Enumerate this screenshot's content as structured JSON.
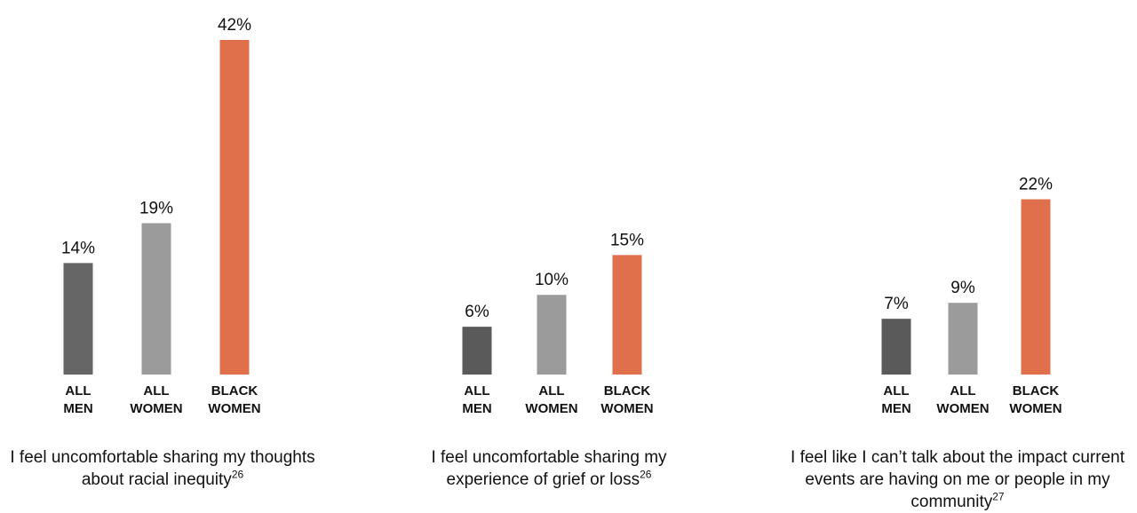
{
  "chart_data": [
    {
      "type": "bar",
      "categories": [
        "ALL MEN",
        "ALL WOMEN",
        "BLACK WOMEN"
      ],
      "category_lines": [
        [
          "ALL",
          "MEN"
        ],
        [
          "ALL",
          "WOMEN"
        ],
        [
          "BLACK",
          "WOMEN"
        ]
      ],
      "values": [
        14,
        19,
        42
      ],
      "value_labels": [
        "14%",
        "19%",
        "42%"
      ],
      "colors": [
        "#666666",
        "#9b9b9b",
        "#e0704c"
      ],
      "caption": "I feel uncomfortable sharing my thoughts about racial inequity",
      "footnote": "26",
      "ylim": [
        0,
        42
      ]
    },
    {
      "type": "bar",
      "categories": [
        "ALL MEN",
        "ALL WOMEN",
        "BLACK WOMEN"
      ],
      "category_lines": [
        [
          "ALL",
          "MEN"
        ],
        [
          "ALL",
          "WOMEN"
        ],
        [
          "BLACK",
          "WOMEN"
        ]
      ],
      "values": [
        6,
        10,
        15
      ],
      "value_labels": [
        "6%",
        "10%",
        "15%"
      ],
      "colors": [
        "#5a5a5a",
        "#9b9b9b",
        "#e0704c"
      ],
      "caption": "I feel uncomfortable sharing my experience of grief or loss",
      "footnote": "26",
      "ylim": [
        0,
        42
      ]
    },
    {
      "type": "bar",
      "categories": [
        "ALL MEN",
        "ALL WOMEN",
        "BLACK WOMEN"
      ],
      "category_lines": [
        [
          "ALL",
          "MEN"
        ],
        [
          "ALL",
          "WOMEN"
        ],
        [
          "BLACK",
          "WOMEN"
        ]
      ],
      "values": [
        7,
        9,
        22
      ],
      "value_labels": [
        "7%",
        "9%",
        "22%"
      ],
      "colors": [
        "#5a5a5a",
        "#9b9b9b",
        "#e0704c"
      ],
      "caption": "I feel like I can’t talk about the impact current events are having on me or people in my community",
      "footnote": "27",
      "ylim": [
        0,
        42
      ]
    }
  ]
}
